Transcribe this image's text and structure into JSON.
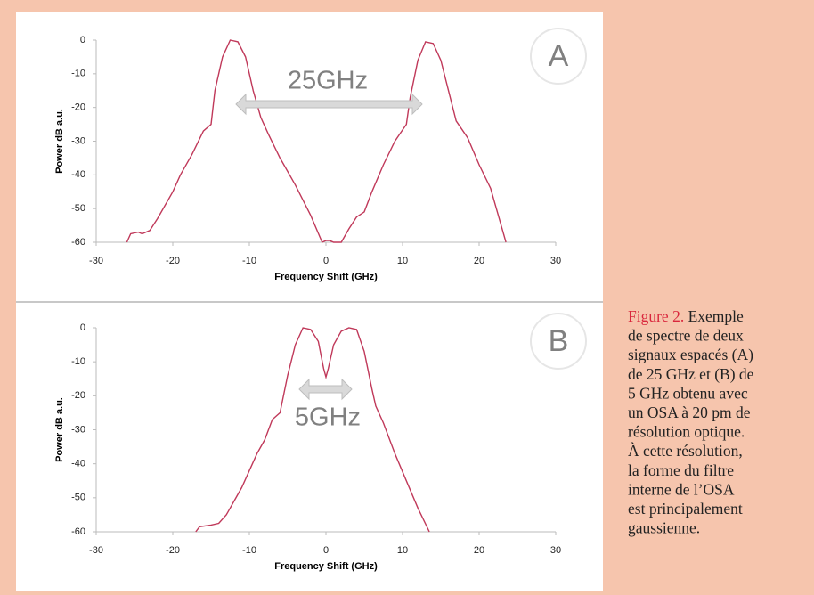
{
  "chart_data": [
    {
      "type": "line",
      "panel_label": "A",
      "annotation": "25GHz",
      "x_label": "Frequency Shift (GHz)",
      "y_label": "Power dB a.u.",
      "xlim": [
        -30,
        30
      ],
      "xticks": [
        -30,
        -20,
        -10,
        0,
        10,
        20,
        30
      ],
      "ylim": [
        -60,
        0
      ],
      "yticks": [
        0,
        -10,
        -20,
        -30,
        -40,
        -50,
        -60
      ],
      "grid": false,
      "color": "#c0395a",
      "x": [
        -26,
        -25.5,
        -24.5,
        -24,
        -23,
        -22,
        -20,
        -19,
        -17.5,
        -16,
        -15,
        -14.5,
        -13.5,
        -12.5,
        -11.5,
        -10.5,
        -9.5,
        -8.5,
        -7.5,
        -6,
        -4,
        -2,
        -0.5,
        0,
        0.5,
        1,
        2,
        3,
        4,
        5,
        6,
        7.5,
        9,
        10.5,
        11,
        12,
        13,
        14,
        15,
        16,
        17,
        18.5,
        20,
        21.5,
        22.5,
        23.5
      ],
      "values": [
        -60,
        -57.5,
        -57,
        -57.5,
        -56.5,
        -53,
        -45,
        -40,
        -34,
        -27,
        -25,
        -15,
        -5,
        0,
        -0.5,
        -5,
        -15,
        -23,
        -28,
        -35,
        -43,
        -52,
        -60,
        -59.5,
        -59.5,
        -60,
        -60,
        -56,
        -52.5,
        -51,
        -45,
        -37,
        -30,
        -25,
        -17,
        -6,
        -0.5,
        -1,
        -6,
        -15,
        -24,
        -29,
        -37,
        -44,
        -52,
        -60
      ]
    },
    {
      "type": "line",
      "panel_label": "B",
      "annotation": "5GHz",
      "x_label": "Frequency Shift (GHz)",
      "y_label": "Power dB a.u.",
      "xlim": [
        -30,
        30
      ],
      "xticks": [
        -30,
        -20,
        -10,
        0,
        10,
        20,
        30
      ],
      "ylim": [
        -60,
        0
      ],
      "yticks": [
        0,
        -10,
        -20,
        -30,
        -40,
        -50,
        -60
      ],
      "grid": false,
      "color": "#c0395a",
      "x": [
        -17,
        -16.5,
        -15,
        -14,
        -13,
        -12,
        -11,
        -10,
        -9,
        -8,
        -7,
        -6,
        -5,
        -4,
        -3,
        -2,
        -1,
        -0.3,
        0,
        0.3,
        1,
        2,
        3,
        4,
        5,
        6,
        6.5,
        7.5,
        9,
        10.5,
        12,
        13.5
      ],
      "values": [
        -60,
        -58.5,
        -58,
        -57.5,
        -55,
        -51,
        -47,
        -42,
        -37,
        -33,
        -27,
        -25,
        -14,
        -5,
        0,
        -0.5,
        -4,
        -12,
        -14.5,
        -12,
        -5,
        -1,
        0,
        -0.5,
        -7,
        -18,
        -23,
        -28,
        -37,
        -45,
        -53,
        -60
      ]
    }
  ],
  "caption": {
    "label": "Figure 2.",
    "lines": [
      "Exemple",
      "de spectre de deux",
      "signaux espacés (A)",
      "de 25 GHz et (B) de",
      "5 GHz obtenu avec",
      "un OSA à 20 pm de",
      "résolution optique.",
      "À cette résolution,",
      "la forme du filtre",
      "interne de l’OSA",
      "est principalement",
      "gaussienne."
    ]
  }
}
